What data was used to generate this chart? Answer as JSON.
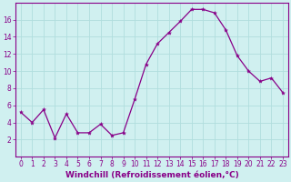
{
  "x": [
    0,
    1,
    2,
    3,
    4,
    5,
    6,
    7,
    8,
    9,
    10,
    11,
    12,
    13,
    14,
    15,
    16,
    17,
    18,
    19,
    20,
    21,
    22,
    23
  ],
  "y": [
    5.2,
    4.0,
    5.5,
    2.2,
    5.0,
    2.8,
    2.8,
    3.8,
    2.5,
    2.8,
    6.7,
    10.8,
    13.2,
    14.5,
    15.8,
    17.2,
    17.2,
    16.8,
    14.8,
    11.8,
    10.0,
    8.8,
    9.2,
    7.5
  ],
  "line_color": "#880088",
  "marker": "*",
  "marker_size": 3,
  "background_color": "#d0f0f0",
  "grid_color": "#b0dede",
  "xlabel": "Windchill (Refroidissement éolien,°C)",
  "xlabel_color": "#880088",
  "tick_color": "#880088",
  "label_color": "#880088",
  "ylim": [
    0,
    18
  ],
  "xlim": [
    -0.5,
    23.5
  ],
  "yticks": [
    2,
    4,
    6,
    8,
    10,
    12,
    14,
    16
  ],
  "xticks": [
    0,
    1,
    2,
    3,
    4,
    5,
    6,
    7,
    8,
    9,
    10,
    11,
    12,
    13,
    14,
    15,
    16,
    17,
    18,
    19,
    20,
    21,
    22,
    23
  ],
  "tick_fontsize": 5.5,
  "xlabel_fontsize": 6.5
}
